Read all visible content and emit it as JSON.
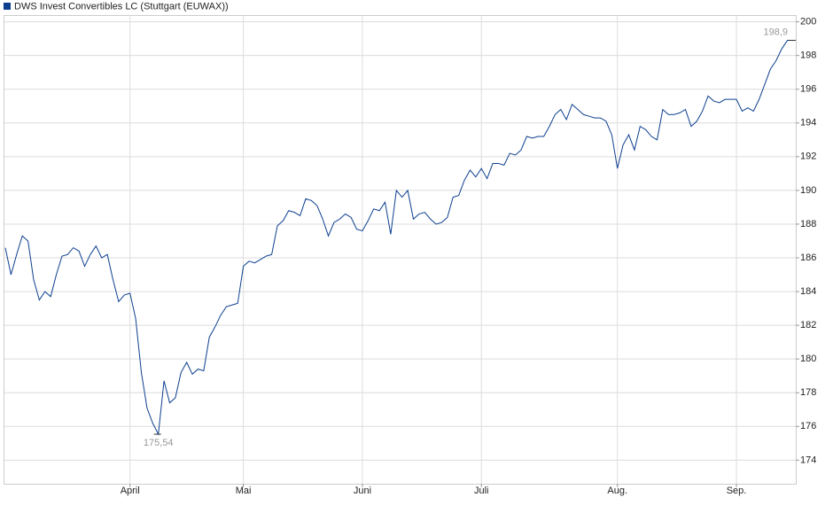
{
  "chart_data": {
    "type": "line",
    "categories": [
      null,
      null,
      null,
      null,
      null,
      null,
      null,
      null,
      null,
      null,
      null,
      null,
      null,
      null,
      null,
      null,
      null,
      null,
      null,
      null,
      null,
      null,
      "April",
      null,
      null,
      null,
      null,
      null,
      null,
      null,
      null,
      null,
      null,
      null,
      null,
      null,
      null,
      null,
      null,
      null,
      null,
      null,
      "Mai",
      null,
      null,
      null,
      null,
      null,
      null,
      null,
      null,
      null,
      null,
      null,
      null,
      null,
      null,
      null,
      null,
      null,
      null,
      null,
      null,
      "Juni",
      null,
      null,
      null,
      null,
      null,
      null,
      null,
      null,
      null,
      null,
      null,
      null,
      null,
      null,
      null,
      null,
      null,
      null,
      null,
      null,
      "Juli",
      null,
      null,
      null,
      null,
      null,
      null,
      null,
      null,
      null,
      null,
      null,
      null,
      null,
      null,
      null,
      null,
      null,
      null,
      null,
      null,
      null,
      null,
      null,
      "Aug.",
      null,
      null,
      null,
      null,
      null,
      null,
      null,
      null,
      null,
      null,
      null,
      null,
      null,
      null,
      null,
      null,
      null,
      null,
      null,
      null,
      "Sep.",
      null,
      null,
      null,
      null,
      null,
      null,
      null,
      null,
      null,
      null
    ],
    "series": [
      {
        "name": "DWS Invest Convertibles LC (Stuttgart (EUWAX))",
        "color": "#0d3f8f",
        "values": [
          186.6,
          185.0,
          186.2,
          187.3,
          187.0,
          184.7,
          183.5,
          184.0,
          183.7,
          185.0,
          186.1,
          186.2,
          186.6,
          186.4,
          185.5,
          186.2,
          186.7,
          186.0,
          186.2,
          184.7,
          183.4,
          183.8,
          183.9,
          182.4,
          179.2,
          177.1,
          176.2,
          175.54,
          178.7,
          177.4,
          177.7,
          179.2,
          179.8,
          179.1,
          179.4,
          179.3,
          181.3,
          181.9,
          182.6,
          183.1,
          183.2,
          183.3,
          185.5,
          185.8,
          185.7,
          185.9,
          186.1,
          186.2,
          187.9,
          188.2,
          188.8,
          188.7,
          188.5,
          189.5,
          189.4,
          189.1,
          188.3,
          187.3,
          188.1,
          188.3,
          188.6,
          188.4,
          187.7,
          187.6,
          188.2,
          188.9,
          188.8,
          189.3,
          187.4,
          190.0,
          189.6,
          190.0,
          188.3,
          188.6,
          188.7,
          188.3,
          188.0,
          188.1,
          188.4,
          189.6,
          189.7,
          190.6,
          191.2,
          190.8,
          191.3,
          190.7,
          191.6,
          191.6,
          191.5,
          192.2,
          192.1,
          192.4,
          193.2,
          193.1,
          193.2,
          193.2,
          193.8,
          194.5,
          194.8,
          194.2,
          195.1,
          194.8,
          194.5,
          194.4,
          194.3,
          194.3,
          194.1,
          193.3,
          191.3,
          192.7,
          193.3,
          192.4,
          193.8,
          193.6,
          193.2,
          193.0,
          194.8,
          194.5,
          194.5,
          194.6,
          194.8,
          193.8,
          194.1,
          194.7,
          195.6,
          195.3,
          195.2,
          195.4,
          195.4,
          195.4,
          194.7,
          194.9,
          194.7,
          195.4,
          196.3,
          197.2,
          197.7,
          198.4,
          198.9,
          198.9
        ],
        "value_labels": [
          null,
          null,
          null,
          null,
          null,
          null,
          null,
          null,
          null,
          null,
          null,
          null,
          null,
          null,
          null,
          null,
          null,
          null,
          null,
          null,
          null,
          null,
          null,
          null,
          null,
          null,
          null,
          "175,54",
          null,
          null,
          null,
          null,
          null,
          null,
          null,
          null,
          null,
          null,
          null,
          null,
          null,
          null,
          null,
          null,
          null,
          null,
          null,
          null,
          null,
          null,
          null,
          null,
          null,
          null,
          null,
          null,
          null,
          null,
          null,
          null,
          null,
          null,
          null,
          null,
          null,
          null,
          null,
          null,
          null,
          null,
          null,
          null,
          null,
          null,
          null,
          null,
          null,
          null,
          null,
          null,
          null,
          null,
          null,
          null,
          null,
          null,
          null,
          null,
          null,
          null,
          null,
          null,
          null,
          null,
          null,
          null,
          null,
          null,
          null,
          null,
          null,
          null,
          null,
          null,
          null,
          null,
          null,
          null,
          null,
          null,
          null,
          null,
          null,
          null,
          null,
          null,
          null,
          null,
          null,
          null,
          null,
          null,
          null,
          null,
          null,
          null,
          null,
          null,
          null,
          null,
          null,
          null,
          null,
          null,
          null,
          null,
          null,
          null,
          null,
          "198,9"
        ]
      }
    ],
    "ylim": [
      172.6,
      200.4
    ],
    "yticks": [
      174,
      176,
      178,
      180,
      182,
      184,
      186,
      188,
      190,
      192,
      194,
      196,
      198,
      200
    ],
    "grid": true
  }
}
